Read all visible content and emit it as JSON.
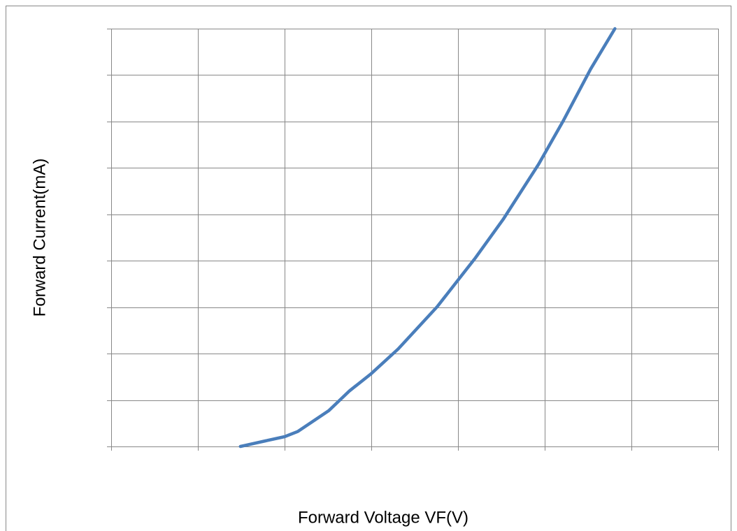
{
  "chart_data": {
    "type": "line",
    "x_label": "Forward Voltage VF(V)",
    "y_label": "Forward Current(mA)",
    "x": [
      1.49,
      1.78,
      2.0,
      2.15,
      2.51,
      2.75,
      3.0,
      3.31,
      3.76,
      4.2,
      4.52,
      4.93,
      5.21,
      5.53,
      5.81
    ],
    "values": [
      0,
      0.12,
      0.21,
      0.32,
      0.77,
      1.2,
      1.57,
      2.1,
      3.01,
      4.06,
      4.89,
      6.08,
      7.0,
      8.13,
      9.0
    ],
    "color": "#4a7ebb",
    "xlim": [
      0,
      7
    ],
    "ylim": [
      0,
      9
    ],
    "xticks": [
      0,
      1,
      2,
      3,
      4,
      5,
      6,
      7
    ],
    "yticks": [
      0,
      1,
      2,
      3,
      4,
      5,
      6,
      7,
      8,
      9
    ],
    "grid": true
  }
}
